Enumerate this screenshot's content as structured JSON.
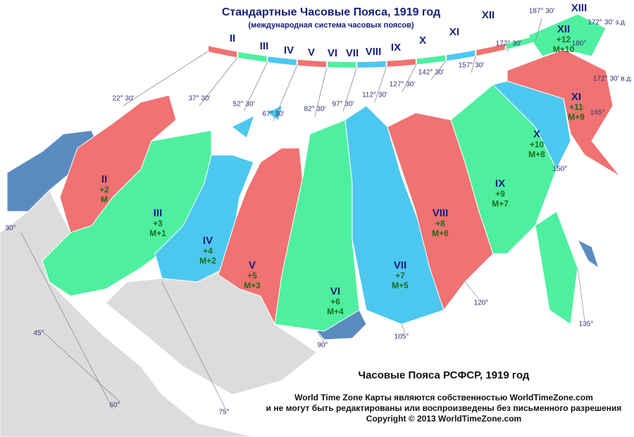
{
  "header": {
    "title": "Стандартные Часовые Пояса, 1919 год",
    "subtitle": "(международная система часовых поясов)"
  },
  "arc_labels": [
    "II",
    "III",
    "IV",
    "V",
    "VI",
    "VII",
    "VIII",
    "IX",
    "X",
    "XI",
    "XII",
    "XIII"
  ],
  "meridian_labels": [
    "22° 30'",
    "37° 30'",
    "52° 30'",
    "67° 30'",
    "82° 30'",
    "97° 30'",
    "112° 30'",
    "127° 30'",
    "142° 30'",
    "157° 30'",
    "172° 30'",
    "187° 30'",
    "172° 30' з.д.",
    "180°",
    "172° 30' в.д.",
    "165°",
    "150°",
    "135°",
    "120°",
    "105°",
    "90°",
    "75°",
    "60°",
    "45°",
    "30°"
  ],
  "zones": [
    {
      "numeral": "II",
      "offset": "+2",
      "moscow": "M"
    },
    {
      "numeral": "III",
      "offset": "+3",
      "moscow": "M+1"
    },
    {
      "numeral": "IV",
      "offset": "+4",
      "moscow": "M+2"
    },
    {
      "numeral": "V",
      "offset": "+5",
      "moscow": "M+3"
    },
    {
      "numeral": "VI",
      "offset": "+6",
      "moscow": "M+4"
    },
    {
      "numeral": "VII",
      "offset": "+7",
      "moscow": "M+5"
    },
    {
      "numeral": "VIII",
      "offset": "+8",
      "moscow": "M+6"
    },
    {
      "numeral": "IX",
      "offset": "+9",
      "moscow": "M+7"
    },
    {
      "numeral": "X",
      "offset": "+10",
      "moscow": "M+8"
    },
    {
      "numeral": "XI",
      "offset": "+11",
      "moscow": "M+9"
    },
    {
      "numeral": "XII",
      "offset": "+12",
      "moscow": "M+10"
    }
  ],
  "footer": {
    "title": "Часовые Пояса РСФСР, 1919 год",
    "notice_1": "World Time Zone Карты являются собственностью WorldTimeZone.com",
    "notice_2": "и не могут быть редактированы или воспроизведены без письменного разрешения",
    "copyright": "Copyright © 2013 WorldTimeZone.com"
  }
}
